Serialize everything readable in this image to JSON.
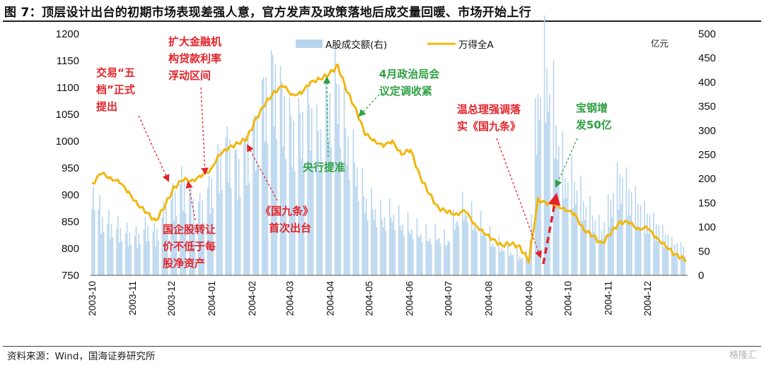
{
  "title": "图 7：顶层设计出台的初期市场表现差强人意，官方发声及政策落地后成交量回暖、市场开始上行",
  "source": "资料来源：Wind，国海证券研究所",
  "watermark": "格隆汇",
  "colors": {
    "bar": "#b7d5ee",
    "line": "#f2b70f",
    "red": "#e3242b",
    "green": "#2ea043"
  },
  "chart_data": {
    "type": "bar+line",
    "left_axis": {
      "min": 750,
      "max": 1200,
      "ticks": [
        750,
        800,
        850,
        900,
        950,
        1000,
        1050,
        1100,
        1150,
        1200
      ]
    },
    "right_axis": {
      "min": 0,
      "max": 500,
      "ticks": [
        0,
        50,
        100,
        150,
        200,
        250,
        300,
        350,
        400,
        450,
        500
      ],
      "unit": "亿元"
    },
    "x_ticks": [
      "2003-10",
      "2003-11",
      "2003-12",
      "2004-01",
      "2004-02",
      "2004-03",
      "2004-04",
      "2004-05",
      "2004-06",
      "2004-07",
      "2004-08",
      "2004-09",
      "2004-10",
      "2004-11",
      "2004-12"
    ],
    "legend": {
      "position": "top-center",
      "items": [
        "A股成交额(右)",
        "万得全A"
      ]
    },
    "grid": false,
    "line_series": {
      "name": "万得全A",
      "points": [
        [
          "2003-10-01",
          918
        ],
        [
          "2003-10-08",
          942
        ],
        [
          "2003-10-15",
          930
        ],
        [
          "2003-10-22",
          925
        ],
        [
          "2003-10-29",
          905
        ],
        [
          "2003-11-05",
          882
        ],
        [
          "2003-11-12",
          868
        ],
        [
          "2003-11-19",
          850
        ],
        [
          "2003-11-26",
          880
        ],
        [
          "2003-12-03",
          912
        ],
        [
          "2003-12-10",
          930
        ],
        [
          "2003-12-17",
          925
        ],
        [
          "2003-12-24",
          936
        ],
        [
          "2003-12-31",
          945
        ],
        [
          "2004-01-07",
          975
        ],
        [
          "2004-01-14",
          988
        ],
        [
          "2004-01-21",
          995
        ],
        [
          "2004-01-28",
          1005
        ],
        [
          "2004-02-04",
          1040
        ],
        [
          "2004-02-11",
          1070
        ],
        [
          "2004-02-18",
          1090
        ],
        [
          "2004-02-25",
          1105
        ],
        [
          "2004-03-03",
          1085
        ],
        [
          "2004-03-10",
          1090
        ],
        [
          "2004-03-17",
          1110
        ],
        [
          "2004-03-24",
          1115
        ],
        [
          "2004-03-31",
          1125
        ],
        [
          "2004-04-07",
          1140
        ],
        [
          "2004-04-14",
          1095
        ],
        [
          "2004-04-21",
          1058
        ],
        [
          "2004-04-28",
          1015
        ],
        [
          "2004-05-05",
          1000
        ],
        [
          "2004-05-12",
          992
        ],
        [
          "2004-05-19",
          1000
        ],
        [
          "2004-05-26",
          975
        ],
        [
          "2004-06-02",
          985
        ],
        [
          "2004-06-09",
          935
        ],
        [
          "2004-06-16",
          905
        ],
        [
          "2004-06-23",
          875
        ],
        [
          "2004-06-30",
          870
        ],
        [
          "2004-07-07",
          862
        ],
        [
          "2004-07-14",
          872
        ],
        [
          "2004-07-21",
          845
        ],
        [
          "2004-07-28",
          830
        ],
        [
          "2004-08-04",
          818
        ],
        [
          "2004-08-11",
          805
        ],
        [
          "2004-08-18",
          810
        ],
        [
          "2004-08-25",
          802
        ],
        [
          "2004-09-01",
          778
        ],
        [
          "2004-09-08",
          890
        ],
        [
          "2004-09-15",
          885
        ],
        [
          "2004-09-22",
          880
        ],
        [
          "2004-09-29",
          872
        ],
        [
          "2004-10-06",
          865
        ],
        [
          "2004-10-13",
          835
        ],
        [
          "2004-10-20",
          825
        ],
        [
          "2004-10-27",
          808
        ],
        [
          "2004-11-03",
          830
        ],
        [
          "2004-11-10",
          848
        ],
        [
          "2004-11-17",
          850
        ],
        [
          "2004-11-24",
          835
        ],
        [
          "2004-12-01",
          840
        ],
        [
          "2004-12-08",
          820
        ],
        [
          "2004-12-15",
          805
        ],
        [
          "2004-12-22",
          790
        ],
        [
          "2004-12-31",
          778
        ]
      ]
    },
    "bar_series": {
      "name": "A股成交额(右)",
      "points": [
        [
          "2003-10-01",
          190
        ],
        [
          "2003-10-08",
          120
        ],
        [
          "2003-10-15",
          105
        ],
        [
          "2003-10-22",
          95
        ],
        [
          "2003-10-29",
          85
        ],
        [
          "2003-11-05",
          80
        ],
        [
          "2003-11-12",
          100
        ],
        [
          "2003-11-19",
          85
        ],
        [
          "2003-11-26",
          130
        ],
        [
          "2003-12-03",
          160
        ],
        [
          "2003-12-10",
          190
        ],
        [
          "2003-12-17",
          150
        ],
        [
          "2003-12-24",
          140
        ],
        [
          "2003-12-31",
          180
        ],
        [
          "2004-01-07",
          240
        ],
        [
          "2004-01-14",
          270
        ],
        [
          "2004-01-21",
          220
        ],
        [
          "2004-01-28",
          260
        ],
        [
          "2004-02-04",
          300
        ],
        [
          "2004-02-11",
          380
        ],
        [
          "2004-02-18",
          420
        ],
        [
          "2004-02-25",
          360
        ],
        [
          "2004-03-03",
          300
        ],
        [
          "2004-03-10",
          320
        ],
        [
          "2004-03-17",
          340
        ],
        [
          "2004-03-24",
          280
        ],
        [
          "2004-03-31",
          360
        ],
        [
          "2004-04-07",
          400
        ],
        [
          "2004-04-14",
          290
        ],
        [
          "2004-04-21",
          230
        ],
        [
          "2004-04-28",
          160
        ],
        [
          "2004-05-05",
          140
        ],
        [
          "2004-05-12",
          120
        ],
        [
          "2004-05-19",
          130
        ],
        [
          "2004-05-26",
          110
        ],
        [
          "2004-06-02",
          100
        ],
        [
          "2004-06-09",
          90
        ],
        [
          "2004-06-16",
          80
        ],
        [
          "2004-06-23",
          85
        ],
        [
          "2004-06-30",
          70
        ],
        [
          "2004-07-07",
          120
        ],
        [
          "2004-07-14",
          140
        ],
        [
          "2004-07-21",
          110
        ],
        [
          "2004-07-28",
          100
        ],
        [
          "2004-08-04",
          70
        ],
        [
          "2004-08-11",
          60
        ],
        [
          "2004-08-18",
          50
        ],
        [
          "2004-08-25",
          40
        ],
        [
          "2004-09-01",
          40
        ],
        [
          "2004-09-08",
          380
        ],
        [
          "2004-09-15",
          430
        ],
        [
          "2004-09-22",
          310
        ],
        [
          "2004-09-29",
          200
        ],
        [
          "2004-10-06",
          190
        ],
        [
          "2004-10-13",
          150
        ],
        [
          "2004-10-20",
          120
        ],
        [
          "2004-10-27",
          90
        ],
        [
          "2004-11-03",
          150
        ],
        [
          "2004-11-10",
          200
        ],
        [
          "2004-11-17",
          170
        ],
        [
          "2004-11-24",
          140
        ],
        [
          "2004-12-01",
          120
        ],
        [
          "2004-12-08",
          100
        ],
        [
          "2004-12-15",
          80
        ],
        [
          "2004-12-22",
          60
        ],
        [
          "2004-12-31",
          55
        ]
      ]
    },
    "annotations": [
      {
        "text": "交易“五\n档”正式\n提出",
        "color": "red",
        "at": [
          "2003-12-10",
          930
        ],
        "arrow": "dashed"
      },
      {
        "text": "扩大金融机\n构贷款利率\n浮动区间",
        "color": "red",
        "at": [
          "2003-12-31",
          940
        ],
        "arrow": "dashed"
      },
      {
        "text": "国企股转让\n价不低于每\n股净资产",
        "color": "red",
        "at": [
          "2003-12-14",
          920
        ],
        "arrow": "dashed"
      },
      {
        "text": "《国九条》\n首次出台",
        "color": "red",
        "at": [
          "2004-02-01",
          1000
        ],
        "arrow": "dashed"
      },
      {
        "text": "央行提准",
        "color": "green",
        "at": [
          "2004-03-24",
          1115
        ],
        "arrow": "dashed"
      },
      {
        "text": "4月政治局会\n议定调收紧",
        "color": "green",
        "at": [
          "2004-04-28",
          1045
        ],
        "arrow": "dashed"
      },
      {
        "text": "温总理强调落\n实《国九条》",
        "color": "red",
        "at": [
          "2004-08-30",
          790
        ],
        "arrow": "dashed"
      },
      {
        "text": "宝钢增\n发50亿",
        "color": "green",
        "at": [
          "2004-09-12",
          895
        ],
        "arrow": "dashed"
      },
      {
        "text": "",
        "color": "red",
        "at": [
          "2004-09-13",
          900
        ],
        "arrow": "thick-dashed"
      }
    ]
  }
}
